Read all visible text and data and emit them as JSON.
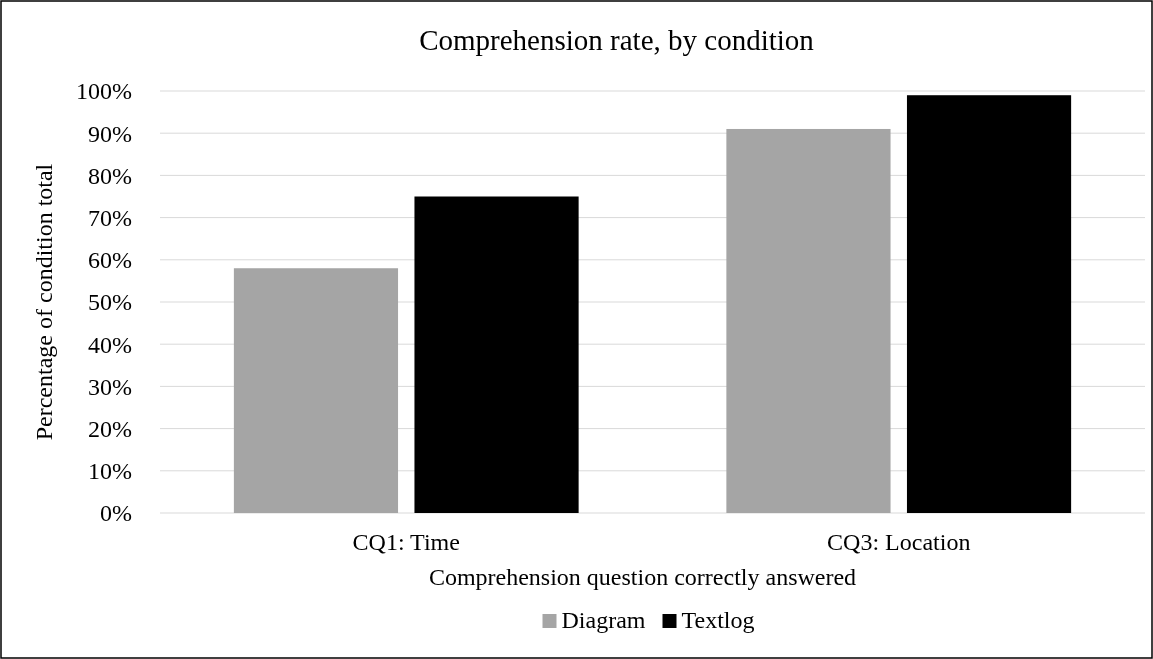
{
  "chart_data": {
    "type": "bar",
    "title": "Comprehension rate, by condition",
    "xlabel": "Comprehension question correctly answered",
    "ylabel": "Percentage of condition total",
    "categories": [
      "CQ1: Time",
      "CQ3: Location"
    ],
    "series": [
      {
        "name": "Diagram",
        "color": "#a5a5a5",
        "values": [
          58,
          91
        ]
      },
      {
        "name": "Textlog",
        "color": "#000000",
        "values": [
          75,
          99
        ]
      }
    ],
    "ylim": [
      0,
      100
    ],
    "yticks": [
      {
        "value": 0,
        "label": "0%"
      },
      {
        "value": 10,
        "label": "10%"
      },
      {
        "value": 20,
        "label": "20%"
      },
      {
        "value": 30,
        "label": "30%"
      },
      {
        "value": 40,
        "label": "40%"
      },
      {
        "value": 50,
        "label": "50%"
      },
      {
        "value": 60,
        "label": "60%"
      },
      {
        "value": 70,
        "label": "70%"
      },
      {
        "value": 80,
        "label": "80%"
      },
      {
        "value": 90,
        "label": "90%"
      },
      {
        "value": 100,
        "label": "100%"
      }
    ],
    "grid": "y",
    "legend": "bottom"
  }
}
